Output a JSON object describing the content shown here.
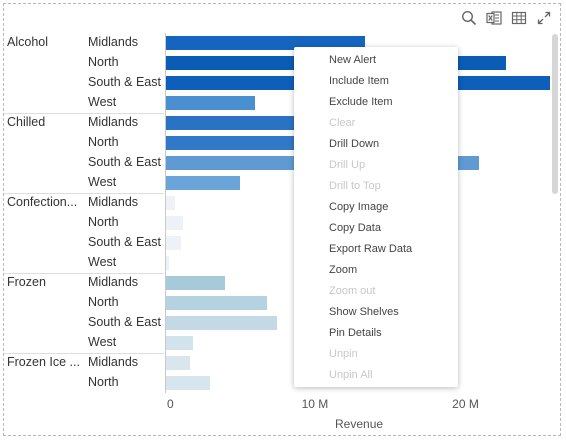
{
  "toolbar": {
    "icons": [
      "search-icon",
      "excel-export-icon",
      "table-view-icon",
      "expand-icon"
    ]
  },
  "chart_data": {
    "type": "bar",
    "orientation": "horizontal",
    "xlabel": "Revenue",
    "xlim": [
      0,
      25500000
    ],
    "xticks": [
      {
        "value": 0,
        "label": "0"
      },
      {
        "value": 10000000,
        "label": "10 M"
      },
      {
        "value": 20000000,
        "label": "20 M"
      }
    ],
    "groups": [
      {
        "category": "Alcohol",
        "rows": [
          {
            "region": "Midlands",
            "value": 13200000,
            "color": "#1565c0"
          },
          {
            "region": "North",
            "value": 22600000,
            "color": "#0b5cb5"
          },
          {
            "region": "South & East",
            "value": 25500000,
            "color": "#0d5fba"
          },
          {
            "region": "West",
            "value": 5900000,
            "color": "#4a8fd0"
          }
        ]
      },
      {
        "category": "Chilled",
        "rows": [
          {
            "region": "Midlands",
            "value": 9000000,
            "color": "#2a72c4"
          },
          {
            "region": "North",
            "value": 9000000,
            "color": "#3179c8"
          },
          {
            "region": "South & East",
            "value": 20800000,
            "color": "#5f9ad3"
          },
          {
            "region": "West",
            "value": 4900000,
            "color": "#6aa4d8"
          }
        ]
      },
      {
        "category": "Confection...",
        "rows": [
          {
            "region": "Midlands",
            "value": 600000,
            "color": "#eef2f6"
          },
          {
            "region": "North",
            "value": 1100000,
            "color": "#eef2f6"
          },
          {
            "region": "South & East",
            "value": 1000000,
            "color": "#eef2f6"
          },
          {
            "region": "West",
            "value": 200000,
            "color": "#eef2f6"
          }
        ]
      },
      {
        "category": "Frozen",
        "rows": [
          {
            "region": "Midlands",
            "value": 3900000,
            "color": "#a7cadb"
          },
          {
            "region": "North",
            "value": 6700000,
            "color": "#b5d2e0"
          },
          {
            "region": "South & East",
            "value": 7400000,
            "color": "#c3d9e6"
          },
          {
            "region": "West",
            "value": 1800000,
            "color": "#d3e3ec"
          }
        ]
      },
      {
        "category": "Frozen Ice ...",
        "rows": [
          {
            "region": "Midlands",
            "value": 1600000,
            "color": "#d9e6ee"
          },
          {
            "region": "North",
            "value": 2900000,
            "color": "#d7e5ee"
          }
        ]
      }
    ]
  },
  "context_menu": {
    "items": [
      {
        "label": "New Alert",
        "enabled": true
      },
      {
        "label": "Include Item",
        "enabled": true
      },
      {
        "label": "Exclude Item",
        "enabled": true
      },
      {
        "label": "Clear",
        "enabled": false
      },
      {
        "label": "Drill Down",
        "enabled": true
      },
      {
        "label": "Drill Up",
        "enabled": false
      },
      {
        "label": "Drill to Top",
        "enabled": false
      },
      {
        "label": "Copy Image",
        "enabled": true
      },
      {
        "label": "Copy Data",
        "enabled": true
      },
      {
        "label": "Export Raw Data",
        "enabled": true
      },
      {
        "label": "Zoom",
        "enabled": true
      },
      {
        "label": "Zoom out",
        "enabled": false
      },
      {
        "label": "Show Shelves",
        "enabled": true
      },
      {
        "label": "Pin Details",
        "enabled": true
      },
      {
        "label": "Unpin",
        "enabled": false
      },
      {
        "label": "Unpin All",
        "enabled": false
      }
    ]
  }
}
